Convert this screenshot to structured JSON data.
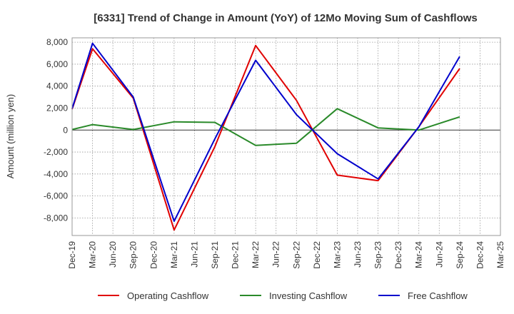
{
  "chart_data": {
    "type": "line",
    "title": "[6331]  Trend of Change in Amount (YoY) of 12Mo Moving Sum of Cashflows",
    "xlabel": "",
    "ylabel": "Amount (million yen)",
    "ylim": [
      -9600,
      8400
    ],
    "yticks": [
      8000,
      6000,
      4000,
      2000,
      0,
      -2000,
      -4000,
      -6000,
      -8000
    ],
    "ytick_labels": [
      "8,000",
      "6,000",
      "4,000",
      "2,000",
      "0",
      "-2,000",
      "-4,000",
      "-6,000",
      "-8,000"
    ],
    "categories": [
      "Dec-19",
      "Mar-20",
      "Jun-20",
      "Sep-20",
      "Dec-20",
      "Mar-21",
      "Jun-21",
      "Sep-21",
      "Dec-21",
      "Mar-22",
      "Jun-22",
      "Sep-22",
      "Dec-22",
      "Mar-23",
      "Jun-23",
      "Sep-23",
      "Dec-23",
      "Mar-24",
      "Jun-24",
      "Sep-24",
      "Dec-24",
      "Mar-25"
    ],
    "grid": true,
    "legend_position": "bottom",
    "series": [
      {
        "name": "Operating Cashflow",
        "color": "#e00000",
        "values": [
          1900,
          7400,
          null,
          2900,
          null,
          -9100,
          null,
          -1500,
          null,
          7700,
          null,
          2700,
          null,
          -4100,
          null,
          -4600,
          null,
          300,
          null,
          5600,
          null,
          null
        ]
      },
      {
        "name": "Investing Cashflow",
        "color": "#2a8a2a",
        "values": [
          50,
          500,
          null,
          50,
          null,
          750,
          null,
          700,
          null,
          -1400,
          null,
          -1200,
          null,
          1950,
          null,
          200,
          null,
          0,
          null,
          1200,
          null,
          null
        ]
      },
      {
        "name": "Free Cashflow",
        "color": "#0000cc",
        "values": [
          1950,
          7900,
          null,
          3000,
          null,
          -8300,
          null,
          -800,
          null,
          6350,
          null,
          1400,
          null,
          -2150,
          null,
          -4450,
          null,
          300,
          null,
          6700,
          null,
          null
        ]
      }
    ]
  }
}
